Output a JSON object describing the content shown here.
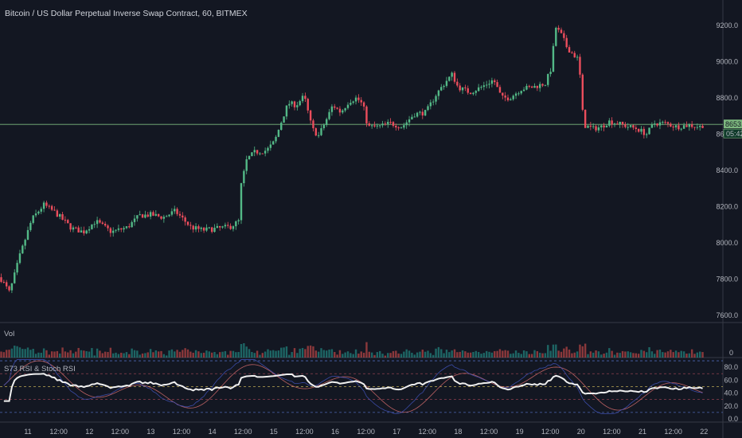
{
  "header": {
    "title": "Bitcoin / US Dollar Perpetual Inverse Swap Contract, 60, BITMEX"
  },
  "panes": {
    "volume_label": "Vol",
    "rsi_label": "S73 RSI & Stoch RSI"
  },
  "price_tag": {
    "value": "8653.5",
    "countdown": "05:42"
  },
  "colors": {
    "background": "#131722",
    "up": "#26a69a",
    "down": "#ef5350",
    "up_candle": "#53b987",
    "down_candle": "#eb4d5c",
    "price_line": "#7cb77e",
    "rsi_main": "#f0f0f0",
    "stoch_k": "#3f51b5",
    "stoch_d": "#e57373"
  },
  "chart_data": {
    "type": "candlestick",
    "timeframe": "60",
    "exchange": "BITMEX",
    "price_axis": {
      "ticks": [
        "9200.0",
        "9000.0",
        "8800.0",
        "8600.0",
        "8400.0",
        "8200.0",
        "8000.0",
        "7800.0",
        "7600.0"
      ],
      "range": [
        7560,
        9340
      ]
    },
    "volume_axis": {
      "ticks": [
        "0"
      ]
    },
    "rsi_axis": {
      "ticks": [
        "80.0",
        "60.0",
        "40.0",
        "20.0",
        "0.0"
      ],
      "range": [
        -5,
        95
      ],
      "levels": [
        90,
        70,
        50,
        30,
        10
      ]
    },
    "time_axis": {
      "ticks": [
        "11",
        "12:00",
        "12",
        "12:00",
        "13",
        "12:00",
        "14",
        "12:00",
        "15",
        "12:00",
        "16",
        "12:00",
        "17",
        "12:00",
        "18",
        "12:00",
        "19",
        "12:00",
        "20",
        "12:00",
        "21",
        "12:00",
        "22"
      ]
    },
    "current_price": 8653.5,
    "price_keypoints": [
      [
        0,
        7810
      ],
      [
        12,
        7725
      ],
      [
        25,
        7930
      ],
      [
        40,
        8130
      ],
      [
        55,
        8210
      ],
      [
        70,
        8165
      ],
      [
        90,
        8080
      ],
      [
        105,
        8060
      ],
      [
        120,
        8120
      ],
      [
        140,
        8060
      ],
      [
        160,
        8085
      ],
      [
        175,
        8150
      ],
      [
        190,
        8155
      ],
      [
        205,
        8140
      ],
      [
        220,
        8175
      ],
      [
        240,
        8085
      ],
      [
        255,
        8070
      ],
      [
        275,
        8080
      ],
      [
        290,
        8090
      ],
      [
        300,
        8120
      ],
      [
        303,
        8320
      ],
      [
        310,
        8460
      ],
      [
        320,
        8500
      ],
      [
        335,
        8510
      ],
      [
        345,
        8560
      ],
      [
        355,
        8690
      ],
      [
        362,
        8770
      ],
      [
        372,
        8760
      ],
      [
        382,
        8810
      ],
      [
        392,
        8630
      ],
      [
        400,
        8590
      ],
      [
        410,
        8680
      ],
      [
        418,
        8760
      ],
      [
        428,
        8720
      ],
      [
        438,
        8780
      ],
      [
        448,
        8800
      ],
      [
        456,
        8760
      ],
      [
        462,
        8640
      ],
      [
        475,
        8640
      ],
      [
        490,
        8660
      ],
      [
        505,
        8640
      ],
      [
        520,
        8710
      ],
      [
        535,
        8720
      ],
      [
        548,
        8820
      ],
      [
        560,
        8890
      ],
      [
        568,
        8930
      ],
      [
        575,
        8860
      ],
      [
        590,
        8830
      ],
      [
        605,
        8860
      ],
      [
        620,
        8900
      ],
      [
        630,
        8800
      ],
      [
        640,
        8800
      ],
      [
        655,
        8850
      ],
      [
        670,
        8860
      ],
      [
        685,
        8880
      ],
      [
        692,
        8960
      ],
      [
        698,
        9190
      ],
      [
        706,
        9140
      ],
      [
        712,
        9080
      ],
      [
        720,
        9040
      ],
      [
        727,
        9010
      ],
      [
        733,
        8650
      ],
      [
        745,
        8630
      ],
      [
        755,
        8640
      ],
      [
        765,
        8670
      ],
      [
        775,
        8660
      ],
      [
        790,
        8640
      ],
      [
        800,
        8630
      ],
      [
        812,
        8600
      ],
      [
        822,
        8660
      ],
      [
        835,
        8660
      ],
      [
        850,
        8640
      ],
      [
        865,
        8650
      ],
      [
        880,
        8640
      ],
      [
        884,
        8653
      ]
    ]
  }
}
